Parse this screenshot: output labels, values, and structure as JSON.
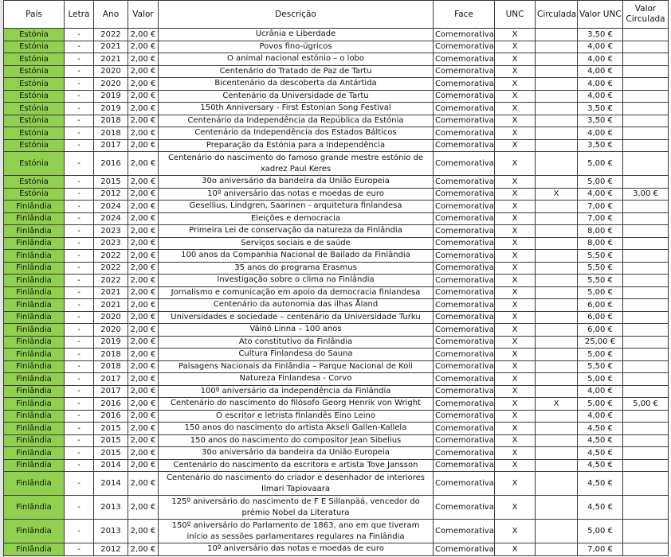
{
  "headers": [
    "País",
    "Letra",
    "Ano",
    "Valor",
    "Descrição",
    "Face",
    "UNC",
    "Circulada",
    "Valor UNC",
    "Valor Circulada"
  ],
  "colors": {
    "country_fill": "#8fd14f",
    "grid": "#3a3a3a"
  },
  "rows": [
    [
      "Estónia",
      "-",
      "2022",
      "2,00 €",
      "Ucrânia e Liberdade",
      "Comemorativa",
      "X",
      "",
      "3,50 €",
      ""
    ],
    [
      "Estónia",
      "-",
      "2021",
      "2,00 €",
      "Povos fino-úgricos",
      "Comemorativa",
      "X",
      "",
      "4,00 €",
      ""
    ],
    [
      "Estónia",
      "-",
      "2021",
      "2,00 €",
      "O animal nacional estónio – o lobo",
      "Comemorativa",
      "X",
      "",
      "4,00 €",
      ""
    ],
    [
      "Estónia",
      "-",
      "2020",
      "2,00 €",
      "Centenário do Tratado de Paz de Tartu",
      "Comemorativa",
      "X",
      "",
      "4,00 €",
      ""
    ],
    [
      "Estónia",
      "-",
      "2020",
      "2,00 €",
      "Bicentenário da descoberta da Antártida",
      "Comemorativa",
      "X",
      "",
      "4,00 €",
      ""
    ],
    [
      "Estónia",
      "-",
      "2019",
      "2,00 €",
      "Centenário da Universidade de Tartu",
      "Comemorativa",
      "X",
      "",
      "4,00 €",
      ""
    ],
    [
      "Estónia",
      "-",
      "2019",
      "2,00 €",
      "150th Anniversary - First Estonian Song Festival",
      "Comemorativa",
      "X",
      "",
      "3,50 €",
      ""
    ],
    [
      "Estónia",
      "-",
      "2018",
      "2,00 €",
      "Centenário da Independência da República da Estónia",
      "Comemorativa",
      "X",
      "",
      "3,50 €",
      ""
    ],
    [
      "Estónia",
      "-",
      "2018",
      "2,00 €",
      "Centenário da Independência dos Estados Bálticos",
      "Comemorativa",
      "X",
      "",
      "4,00 €",
      ""
    ],
    [
      "Estónia",
      "-",
      "2017",
      "2,00 €",
      "Preparação da Estónia para a Independência",
      "Comemorativa",
      "X",
      "",
      "3,50 €",
      ""
    ],
    [
      "Estónia",
      "-",
      "2016",
      "2,00 €",
      "Centenário do nascimento do famoso grande mestre estónio de xadrez Paul Keres",
      "Comemorativa",
      "X",
      "",
      "5,00 €",
      ""
    ],
    [
      "Estónia",
      "-",
      "2015",
      "2,00 €",
      "30o aniversário da bandeira da União Europeia",
      "Comemorativa",
      "X",
      "",
      "5,00 €",
      ""
    ],
    [
      "Estónia",
      "-",
      "2012",
      "2,00 €",
      "10º aniversário das notas e moedas de euro",
      "Comemorativa",
      "X",
      "X",
      "4,00 €",
      "3,00 €"
    ],
    [
      "Finlândia",
      "-",
      "2024",
      "2,00 €",
      "Gesellius, Lindgren, Saarinen - arquitetura finlandesa",
      "Comemorativa",
      "X",
      "",
      "7,00 €",
      ""
    ],
    [
      "Finlândia",
      "-",
      "2024",
      "2,00 €",
      "Eleições e democracia",
      "Comemorativa",
      "X",
      "",
      "7,00 €",
      ""
    ],
    [
      "Finlândia",
      "-",
      "2023",
      "2,00 €",
      "Primeira Lei de conservação da natureza da Finlândia",
      "Comemorativa",
      "X",
      "",
      "8,00 €",
      ""
    ],
    [
      "Finlândia",
      "-",
      "2023",
      "2,00 €",
      "Serviços sociais e de saúde",
      "Comemorativa",
      "X",
      "",
      "8,00 €",
      ""
    ],
    [
      "Finlândia",
      "-",
      "2022",
      "2,00 €",
      "100 anos da Companhia Nacional de Bailado da Finlândia",
      "Comemorativa",
      "X",
      "",
      "5,50 €",
      ""
    ],
    [
      "Finlândia",
      "-",
      "2022",
      "2,00 €",
      "35 anos do programa Erasmus",
      "Comemorativa",
      "X",
      "",
      "5,50 €",
      ""
    ],
    [
      "Finlândia",
      "-",
      "2022",
      "2,00 €",
      "Investigação sobre o clima na Finlândia",
      "Comemorativa",
      "X",
      "",
      "5,50 €",
      ""
    ],
    [
      "Finlândia",
      "-",
      "2021",
      "2,00 €",
      "Jornalismo e comunicação em apoio da democracia finlandesa",
      "Comemorativa",
      "X",
      "",
      "5,00 €",
      ""
    ],
    [
      "Finlândia",
      "-",
      "2021",
      "2,00 €",
      "Centenário da autonomia das ilhas Åland",
      "Comemorativa",
      "X",
      "",
      "6,00 €",
      ""
    ],
    [
      "Finlândia",
      "-",
      "2020",
      "2,00 €",
      "Universidades e sociedade – centenário da Universidade Turku",
      "Comemorativa",
      "X",
      "",
      "6,00 €",
      ""
    ],
    [
      "Finlândia",
      "-",
      "2020",
      "2,00 €",
      "Väinö Linna – 100 anos",
      "Comemorativa",
      "X",
      "",
      "6,00 €",
      ""
    ],
    [
      "Finlândia",
      "-",
      "2019",
      "2,00 €",
      "Ato constitutivo da Finlândia",
      "Comemorativa",
      "X",
      "",
      "25,00 €",
      ""
    ],
    [
      "Finlândia",
      "-",
      "2018",
      "2,00 €",
      "Cultura Finlandesa do Sauna",
      "Comemorativa",
      "X",
      "",
      "5,00 €",
      ""
    ],
    [
      "Finlândia",
      "-",
      "2018",
      "2,00 €",
      "Paisagens Nacionais da Finlândia – Parque Nacional de Koli",
      "Comemorativa",
      "X",
      "",
      "5,50 €",
      ""
    ],
    [
      "Finlândia",
      "-",
      "2017",
      "2,00 €",
      "Natureza Finlandesa - Corvo",
      "Comemorativa",
      "X",
      "",
      "5,00 €",
      ""
    ],
    [
      "Finlândia",
      "-",
      "2017",
      "2,00 €",
      "100º aniversário da independência da Finlândia",
      "Comemorativa",
      "X",
      "",
      "4,00 €",
      ""
    ],
    [
      "Finlândia",
      "-",
      "2016",
      "2,00 €",
      "Centenário do nascimento do filósofo Georg Henrik von Wright",
      "Comemorativa",
      "X",
      "X",
      "5,00 €",
      "5,00 €"
    ],
    [
      "Finlândia",
      "-",
      "2016",
      "2,00 €",
      "O escritor e letrista finlandês Eino Leino",
      "Comemorativa",
      "X",
      "",
      "4,00 €",
      ""
    ],
    [
      "Finlândia",
      "-",
      "2015",
      "2,00 €",
      "150 anos do nascimento do artista Akseli Gallen-Kallela",
      "Comemorativa",
      "X",
      "",
      "4,50 €",
      ""
    ],
    [
      "Finlândia",
      "-",
      "2015",
      "2,00 €",
      "150 anos do nascimento do compositor Jean Sibelius",
      "Comemorativa",
      "X",
      "",
      "4,50 €",
      ""
    ],
    [
      "Finlândia",
      "-",
      "2015",
      "2,00 €",
      "30o aniversário da bandeira da União Europeia",
      "Comemorativa",
      "X",
      "",
      "4,50 €",
      ""
    ],
    [
      "Finlândia",
      "-",
      "2014",
      "2,00 €",
      "Centenário do nascimento da escritora e artista Tove Jansson",
      "Comemorativa",
      "X",
      "",
      "4,50 €",
      ""
    ],
    [
      "Finlândia",
      "-",
      "2014",
      "2,00 €",
      "Centenário do nascimento do criador e desenhador de interiores Ilmari Tapiovaara",
      "Comemorativa",
      "X",
      "",
      "4,50 €",
      ""
    ],
    [
      "Finlândia",
      "-",
      "2013",
      "2,00 €",
      "125º aniversário do nascimento de F E Sillanpää, vencedor do prémio Nobel da Literatura",
      "Comemorativa",
      "X",
      "",
      "4,50 €",
      ""
    ],
    [
      "Finlândia",
      "-",
      "2013",
      "2,00 €",
      "150º aniversário do Parlamento de 1863, ano em que tiveram início as sessões parlamentares regulares na Finlândia",
      "Comemorativa",
      "X",
      "",
      "5,00 €",
      ""
    ],
    [
      "Finlândia",
      "-",
      "2012",
      "2,00 €",
      "10º aniversário das notas e moedas de euro",
      "Comemorativa",
      "X",
      "",
      "7,00 €",
      ""
    ]
  ]
}
